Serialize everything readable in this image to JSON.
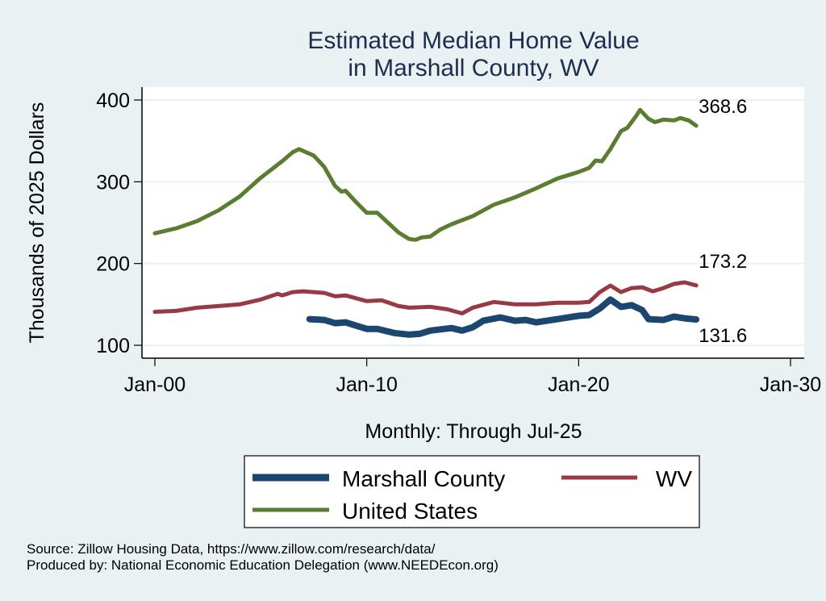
{
  "chart_data": {
    "type": "line",
    "title": [
      "Estimated Median Home Value",
      "in Marshall County, WV"
    ],
    "xlabel": "Monthly: Through Jul-25",
    "ylabel": "Thousands of 2025 Dollars",
    "xlim": [
      2000,
      2030
    ],
    "ylim": [
      100,
      400
    ],
    "x_ticks": [
      {
        "value": 2000,
        "label": "Jan-00"
      },
      {
        "value": 2010,
        "label": "Jan-10"
      },
      {
        "value": 2020,
        "label": "Jan-20"
      },
      {
        "value": 2030,
        "label": "Jan-30"
      }
    ],
    "y_ticks": [
      100,
      200,
      300,
      400
    ],
    "grid": true,
    "legend_position": "bottom",
    "series": [
      {
        "name": "Marshall County",
        "color": "#1a4670",
        "end_label": "131.6",
        "x": [
          2007.3,
          2008,
          2008.5,
          2009,
          2009.5,
          2010,
          2010.5,
          2011.3,
          2012,
          2012.5,
          2013,
          2014,
          2014.5,
          2015,
          2015.5,
          2016.3,
          2017,
          2017.5,
          2018,
          2019,
          2020,
          2020.5,
          2021,
          2021.5,
          2022,
          2022.5,
          2023,
          2023.3,
          2024,
          2024.5,
          2025,
          2025.55
        ],
        "values": [
          132,
          131,
          127,
          128,
          124,
          120,
          120,
          115,
          113,
          114,
          118,
          121,
          118,
          122,
          130,
          134,
          130,
          131,
          128,
          132,
          136,
          137,
          145,
          156,
          147,
          149,
          143,
          132,
          131,
          135,
          133,
          131.6
        ]
      },
      {
        "name": "WV",
        "color": "#983a43",
        "end_label": "173.2",
        "x": [
          2000,
          2001,
          2002,
          2003,
          2004,
          2005,
          2005.8,
          2006,
          2006.5,
          2007,
          2008,
          2008.5,
          2009,
          2010,
          2010.7,
          2011.5,
          2012,
          2013,
          2013.8,
          2014.5,
          2015,
          2016,
          2017,
          2018,
          2019,
          2020,
          2020.5,
          2021,
          2021.5,
          2022,
          2022.5,
          2023,
          2023.5,
          2024,
          2024.5,
          2025,
          2025.55
        ],
        "values": [
          141,
          142,
          146,
          148,
          150,
          156,
          163,
          161,
          165,
          166,
          164,
          160,
          161,
          154,
          155,
          148,
          146,
          147,
          144,
          139,
          146,
          153,
          150,
          150,
          152,
          152,
          153,
          165,
          173,
          165,
          170,
          171,
          166,
          170,
          175,
          177,
          173.2
        ]
      },
      {
        "name": "United States",
        "color": "#5a7d32",
        "end_label": "368.6",
        "x": [
          2000,
          2001,
          2002,
          2003,
          2004,
          2005,
          2006,
          2006.5,
          2006.8,
          2007.5,
          2008,
          2008.5,
          2008.8,
          2009,
          2009.5,
          2010,
          2010.5,
          2011,
          2011.5,
          2012,
          2012.3,
          2012.6,
          2013,
          2013.5,
          2014,
          2015,
          2015.5,
          2016,
          2017,
          2018,
          2019,
          2020,
          2020.5,
          2020.8,
          2021.1,
          2021.5,
          2022,
          2022.3,
          2022.7,
          2022.9,
          2023.3,
          2023.6,
          2024,
          2024.5,
          2024.8,
          2025.2,
          2025.55
        ],
        "values": [
          237,
          243,
          252,
          265,
          282,
          305,
          325,
          336,
          340,
          332,
          318,
          295,
          288,
          289,
          275,
          262,
          262,
          250,
          238,
          230,
          229,
          232,
          233,
          242,
          248,
          258,
          265,
          272,
          281,
          292,
          304,
          312,
          317,
          326,
          325,
          340,
          362,
          366,
          380,
          388,
          377,
          373,
          376,
          375,
          378,
          375,
          368.6
        ]
      }
    ]
  },
  "legend": {
    "items": [
      {
        "label": "Marshall County",
        "color": "#1a4670"
      },
      {
        "label": "WV",
        "color": "#983a43"
      },
      {
        "label": "United States",
        "color": "#5a7d32"
      }
    ]
  },
  "notes": {
    "source": "Source: Zillow Housing Data, https://www.zillow.com/research/data/",
    "produced_by": "Produced by: National Economic Education Delegation (www.NEEDEcon.org)"
  }
}
